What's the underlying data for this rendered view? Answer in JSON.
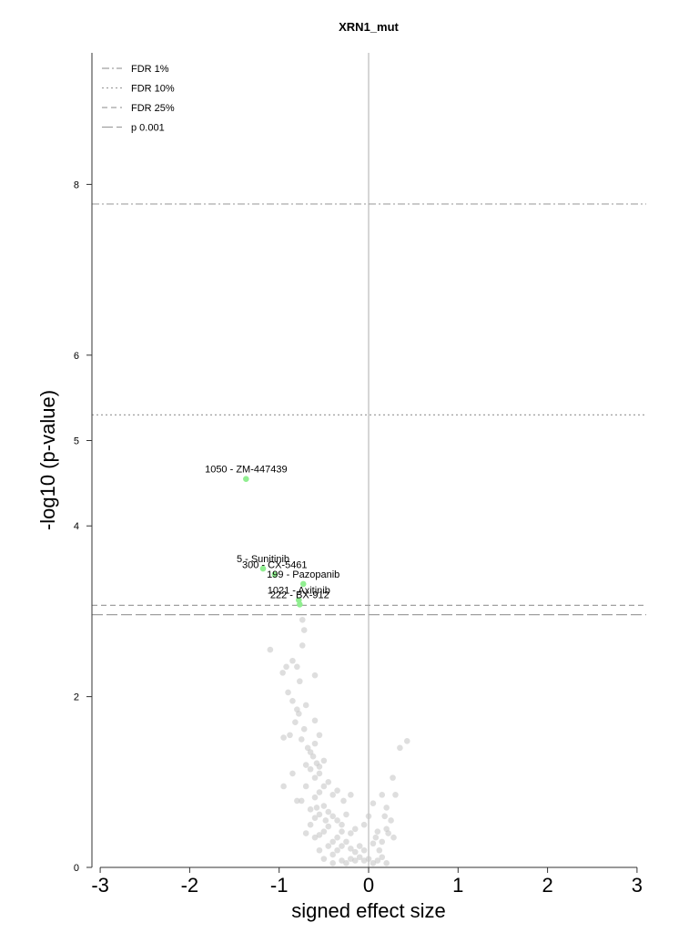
{
  "chart_data": {
    "type": "scatter",
    "title": "XRN1_mut",
    "xlabel": "signed effect size",
    "ylabel": "-log10 (p-value)",
    "xlim": [
      -3,
      3
    ],
    "ylim": [
      0,
      9.5
    ],
    "x_ticks": [
      -3,
      -2,
      -1,
      0,
      1,
      2,
      3
    ],
    "y_ticks": [
      0,
      2,
      4,
      5,
      6,
      8
    ],
    "grid": false,
    "legend_position": "top-left",
    "colors": {
      "significant": "#90ee90",
      "background": "#c8c8c8",
      "threshold": "#a0a0a0",
      "zero_line": "#c8c8c8"
    },
    "thresholds": [
      {
        "name": "FDR 1%",
        "y": 7.77,
        "style": "dashdot"
      },
      {
        "name": "FDR 10%",
        "y": 5.3,
        "style": "dotted"
      },
      {
        "name": "FDR 25%",
        "y": 3.07,
        "style": "dashed"
      },
      {
        "name": "p 0.001",
        "y": 2.96,
        "style": "longdash"
      }
    ],
    "labeled_points": [
      {
        "label": "1050 - ZM-447439",
        "x": -1.37,
        "y": 4.55
      },
      {
        "label": "5 - Sunitinib",
        "x": -1.18,
        "y": 3.5
      },
      {
        "label": "300 - CX-5461",
        "x": -1.05,
        "y": 3.43
      },
      {
        "label": "199 - Pazopanib",
        "x": -0.73,
        "y": 3.32
      },
      {
        "label": "1021 - Axitinib",
        "x": -0.78,
        "y": 3.13
      },
      {
        "label": "222 - BX-912",
        "x": -0.77,
        "y": 3.08
      }
    ],
    "background_points": [
      [
        -0.74,
        2.9
      ],
      [
        -0.72,
        2.78
      ],
      [
        -1.1,
        2.55
      ],
      [
        -0.74,
        2.6
      ],
      [
        -0.85,
        2.42
      ],
      [
        -0.8,
        2.35
      ],
      [
        -0.92,
        2.35
      ],
      [
        -0.96,
        2.28
      ],
      [
        -0.77,
        2.18
      ],
      [
        -0.6,
        2.25
      ],
      [
        -0.9,
        2.05
      ],
      [
        -0.85,
        1.95
      ],
      [
        -0.8,
        1.85
      ],
      [
        -0.7,
        1.9
      ],
      [
        -0.78,
        1.8
      ],
      [
        -0.82,
        1.7
      ],
      [
        -0.72,
        1.62
      ],
      [
        -0.6,
        1.72
      ],
      [
        -0.55,
        1.55
      ],
      [
        -0.6,
        1.45
      ],
      [
        -0.65,
        1.35
      ],
      [
        -0.75,
        1.5
      ],
      [
        -0.95,
        1.52
      ],
      [
        -0.88,
        1.55
      ],
      [
        -0.68,
        1.4
      ],
      [
        -0.62,
        1.3
      ],
      [
        -0.58,
        1.22
      ],
      [
        -0.55,
        1.18
      ],
      [
        -0.5,
        1.25
      ],
      [
        -0.55,
        1.1
      ],
      [
        -0.6,
        1.05
      ],
      [
        -0.65,
        1.15
      ],
      [
        -0.7,
        1.2
      ],
      [
        -0.45,
        1.0
      ],
      [
        -0.5,
        0.95
      ],
      [
        -0.55,
        0.88
      ],
      [
        -0.6,
        0.82
      ],
      [
        -0.4,
        0.85
      ],
      [
        -0.35,
        0.9
      ],
      [
        -0.7,
        0.95
      ],
      [
        -0.75,
        0.78
      ],
      [
        -0.5,
        0.72
      ],
      [
        -0.45,
        0.65
      ],
      [
        -0.55,
        0.62
      ],
      [
        -0.6,
        0.58
      ],
      [
        -0.65,
        0.68
      ],
      [
        -0.4,
        0.6
      ],
      [
        -0.35,
        0.55
      ],
      [
        -0.3,
        0.5
      ],
      [
        -0.25,
        0.62
      ],
      [
        -0.45,
        0.48
      ],
      [
        -0.5,
        0.42
      ],
      [
        -0.55,
        0.38
      ],
      [
        -0.3,
        0.42
      ],
      [
        -0.35,
        0.35
      ],
      [
        -0.4,
        0.3
      ],
      [
        -0.2,
        0.4
      ],
      [
        -0.15,
        0.45
      ],
      [
        -0.25,
        0.3
      ],
      [
        -0.3,
        0.25
      ],
      [
        -0.35,
        0.2
      ],
      [
        -0.4,
        0.15
      ],
      [
        -0.2,
        0.22
      ],
      [
        -0.15,
        0.18
      ],
      [
        -0.1,
        0.25
      ],
      [
        -0.05,
        0.2
      ],
      [
        -0.1,
        0.12
      ],
      [
        -0.15,
        0.08
      ],
      [
        -0.2,
        0.1
      ],
      [
        -0.25,
        0.05
      ],
      [
        -0.05,
        0.08
      ],
      [
        0.0,
        0.1
      ],
      [
        0.05,
        0.05
      ],
      [
        0.1,
        0.08
      ],
      [
        0.15,
        0.12
      ],
      [
        0.2,
        0.05
      ],
      [
        0.12,
        0.2
      ],
      [
        0.05,
        0.28
      ],
      [
        0.08,
        0.35
      ],
      [
        0.15,
        0.3
      ],
      [
        0.2,
        0.45
      ],
      [
        0.25,
        0.55
      ],
      [
        0.18,
        0.6
      ],
      [
        0.22,
        0.4
      ],
      [
        0.28,
        0.35
      ],
      [
        0.1,
        0.42
      ],
      [
        -0.05,
        0.5
      ],
      [
        0.0,
        0.6
      ],
      [
        0.05,
        0.75
      ],
      [
        0.2,
        0.7
      ],
      [
        0.15,
        0.85
      ],
      [
        0.27,
        1.05
      ],
      [
        0.3,
        0.85
      ],
      [
        0.35,
        1.4
      ],
      [
        0.43,
        1.48
      ],
      [
        -0.8,
        0.78
      ],
      [
        -0.95,
        0.95
      ],
      [
        -0.85,
        1.1
      ],
      [
        -0.45,
        0.25
      ],
      [
        -0.55,
        0.2
      ],
      [
        -0.6,
        0.35
      ],
      [
        -0.3,
        0.08
      ],
      [
        -0.4,
        0.05
      ],
      [
        -0.5,
        0.1
      ],
      [
        -0.28,
        0.78
      ],
      [
        -0.2,
        0.85
      ],
      [
        -0.65,
        0.5
      ],
      [
        -0.7,
        0.4
      ],
      [
        -0.48,
        0.55
      ],
      [
        -0.58,
        0.7
      ]
    ]
  }
}
